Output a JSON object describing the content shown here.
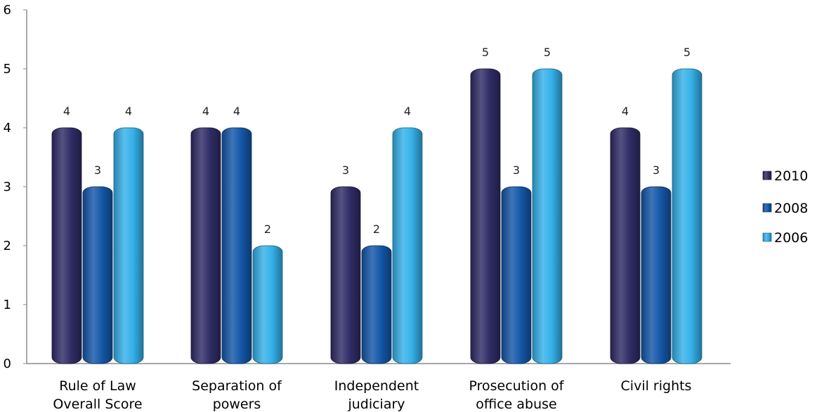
{
  "chart_data": {
    "type": "bar",
    "title": "",
    "xlabel": "",
    "ylabel": "",
    "ylim": [
      0,
      6
    ],
    "yticks": [
      0,
      1,
      2,
      3,
      4,
      5,
      6
    ],
    "grid": false,
    "legend_position": "right",
    "categories": [
      [
        "Rule of Law",
        "Overall Score"
      ],
      [
        "Separation of",
        "powers"
      ],
      [
        "Independent",
        "judiciary"
      ],
      [
        "Prosecution of",
        "office abuse"
      ],
      [
        "Civil rights"
      ]
    ],
    "series": [
      {
        "name": "2010",
        "color": "#302c66",
        "values": [
          4,
          4,
          3,
          5,
          4
        ]
      },
      {
        "name": "2008",
        "color": "#1457a8",
        "values": [
          3,
          4,
          2,
          3,
          3
        ]
      },
      {
        "name": "2006",
        "color": "#35b1e9",
        "values": [
          4,
          2,
          4,
          5,
          5
        ]
      }
    ]
  }
}
